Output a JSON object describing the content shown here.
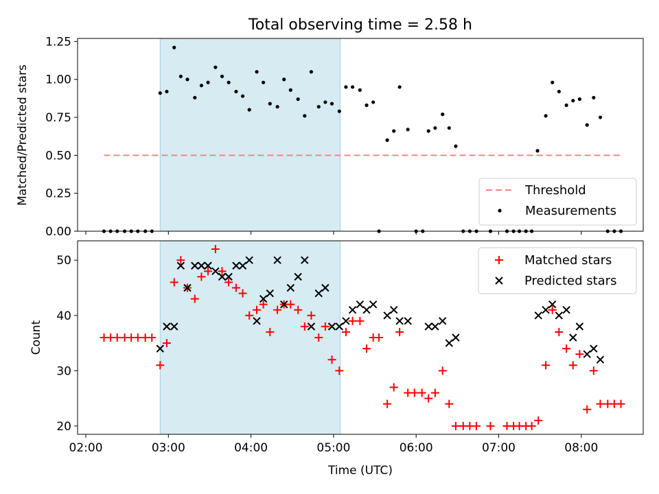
{
  "figure": {
    "title": "Total observing time = 2.58 h",
    "highlight_color": "#add8e6"
  },
  "chart_data": [
    {
      "type": "scatter",
      "title": "Total observing time = 2.58 h",
      "xlabel": "",
      "ylabel": "Matched/Predicted stars",
      "xlim": [
        -0.1,
        6.75
      ],
      "ylim": [
        0,
        1.27
      ],
      "yticks": [
        0,
        0.25,
        0.5,
        0.75,
        1.0,
        1.25
      ],
      "ytick_labels": [
        "0.00",
        "0.25",
        "0.50",
        "0.75",
        "1.00",
        "1.25"
      ],
      "xticks": [
        0,
        1,
        2,
        3,
        4,
        5,
        6
      ],
      "legend": {
        "placement": "lower-right",
        "entries": [
          "Threshold",
          "Measurements"
        ]
      },
      "highlight_span": [
        0.9,
        3.08
      ],
      "threshold": {
        "name": "Threshold",
        "value": 0.5,
        "x": [
          0.22,
          6.48
        ],
        "color": "#ff8080",
        "style": "dashed"
      },
      "series": [
        {
          "name": "Measurements",
          "color": "#000000",
          "marker": "dot",
          "points": [
            [
              0.22,
              0
            ],
            [
              0.3,
              0
            ],
            [
              0.38,
              0
            ],
            [
              0.47,
              0
            ],
            [
              0.55,
              0
            ],
            [
              0.63,
              0
            ],
            [
              0.72,
              0
            ],
            [
              0.8,
              0
            ],
            [
              0.9,
              0.91
            ],
            [
              0.98,
              0.92
            ],
            [
              1.07,
              1.21
            ],
            [
              1.15,
              1.02
            ],
            [
              1.23,
              1.0
            ],
            [
              1.32,
              0.88
            ],
            [
              1.4,
              0.96
            ],
            [
              1.48,
              0.98
            ],
            [
              1.57,
              1.08
            ],
            [
              1.65,
              1.02
            ],
            [
              1.73,
              0.98
            ],
            [
              1.82,
              0.92
            ],
            [
              1.9,
              0.89
            ],
            [
              1.98,
              0.8
            ],
            [
              2.07,
              1.05
            ],
            [
              2.15,
              0.98
            ],
            [
              2.23,
              0.84
            ],
            [
              2.32,
              0.82
            ],
            [
              2.4,
              1.0
            ],
            [
              2.48,
              0.93
            ],
            [
              2.57,
              0.87
            ],
            [
              2.65,
              0.76
            ],
            [
              2.73,
              1.05
            ],
            [
              2.82,
              0.82
            ],
            [
              2.9,
              0.85
            ],
            [
              2.98,
              0.84
            ],
            [
              3.07,
              0.79
            ],
            [
              3.15,
              0.95
            ],
            [
              3.23,
              0.95
            ],
            [
              3.32,
              0.93
            ],
            [
              3.4,
              0.83
            ],
            [
              3.48,
              0.85
            ],
            [
              3.55,
              0
            ],
            [
              3.65,
              0.6
            ],
            [
              3.73,
              0.66
            ],
            [
              3.8,
              0.95
            ],
            [
              3.9,
              0.67
            ],
            [
              4.0,
              0
            ],
            [
              4.08,
              0
            ],
            [
              4.15,
              0.66
            ],
            [
              4.23,
              0.68
            ],
            [
              4.32,
              0.77
            ],
            [
              4.4,
              0.68
            ],
            [
              4.48,
              0.56
            ],
            [
              4.57,
              0
            ],
            [
              4.65,
              0
            ],
            [
              4.73,
              0
            ],
            [
              4.9,
              0
            ],
            [
              5.1,
              0
            ],
            [
              5.18,
              0
            ],
            [
              5.25,
              0
            ],
            [
              5.33,
              0
            ],
            [
              5.4,
              0
            ],
            [
              5.47,
              0.53
            ],
            [
              5.57,
              0.76
            ],
            [
              5.65,
              0.98
            ],
            [
              5.73,
              0.92
            ],
            [
              5.82,
              0.83
            ],
            [
              5.9,
              0.86
            ],
            [
              5.98,
              0.87
            ],
            [
              6.07,
              0.7
            ],
            [
              6.15,
              0.88
            ],
            [
              6.23,
              0.75
            ],
            [
              6.32,
              0
            ],
            [
              6.4,
              0
            ],
            [
              6.48,
              0
            ]
          ]
        }
      ]
    },
    {
      "type": "scatter",
      "title": "",
      "xlabel": "Time (UTC)",
      "ylabel": "Count",
      "xlim": [
        -0.1,
        6.75
      ],
      "ylim": [
        18.5,
        53.5
      ],
      "yticks": [
        20,
        30,
        40,
        50
      ],
      "xticks": [
        0,
        1,
        2,
        3,
        4,
        5,
        6
      ],
      "xtick_labels": [
        "02:00",
        "03:00",
        "04:00",
        "05:00",
        "06:00",
        "07:00",
        "08:00"
      ],
      "legend": {
        "placement": "upper-right",
        "entries": [
          "Matched stars",
          "Predicted stars"
        ]
      },
      "highlight_span": [
        0.9,
        3.08
      ],
      "series": [
        {
          "name": "Matched stars",
          "color": "#ff0000",
          "marker": "plus",
          "points": [
            [
              0.22,
              36
            ],
            [
              0.3,
              36
            ],
            [
              0.38,
              36
            ],
            [
              0.47,
              36
            ],
            [
              0.55,
              36
            ],
            [
              0.63,
              36
            ],
            [
              0.72,
              36
            ],
            [
              0.8,
              36
            ],
            [
              0.9,
              31
            ],
            [
              0.98,
              35
            ],
            [
              1.07,
              46
            ],
            [
              1.15,
              50
            ],
            [
              1.23,
              45
            ],
            [
              1.32,
              43
            ],
            [
              1.4,
              47
            ],
            [
              1.48,
              48
            ],
            [
              1.57,
              52
            ],
            [
              1.65,
              48
            ],
            [
              1.73,
              46
            ],
            [
              1.82,
              45
            ],
            [
              1.9,
              44
            ],
            [
              1.98,
              40
            ],
            [
              2.07,
              41
            ],
            [
              2.15,
              42
            ],
            [
              2.23,
              37
            ],
            [
              2.32,
              41
            ],
            [
              2.4,
              42
            ],
            [
              2.48,
              42
            ],
            [
              2.57,
              41
            ],
            [
              2.65,
              38
            ],
            [
              2.73,
              40
            ],
            [
              2.82,
              36
            ],
            [
              2.9,
              38
            ],
            [
              2.98,
              32
            ],
            [
              3.07,
              30
            ],
            [
              3.15,
              37
            ],
            [
              3.23,
              39
            ],
            [
              3.32,
              39
            ],
            [
              3.4,
              34
            ],
            [
              3.48,
              36
            ],
            [
              3.55,
              36
            ],
            [
              3.65,
              24
            ],
            [
              3.73,
              27
            ],
            [
              3.8,
              37
            ],
            [
              3.9,
              26
            ],
            [
              3.98,
              26
            ],
            [
              4.07,
              26
            ],
            [
              4.15,
              25
            ],
            [
              4.23,
              26
            ],
            [
              4.32,
              30
            ],
            [
              4.4,
              24
            ],
            [
              4.48,
              20
            ],
            [
              4.57,
              20
            ],
            [
              4.65,
              20
            ],
            [
              4.73,
              20
            ],
            [
              4.9,
              20
            ],
            [
              5.1,
              20
            ],
            [
              5.18,
              20
            ],
            [
              5.25,
              20
            ],
            [
              5.33,
              20
            ],
            [
              5.4,
              20
            ],
            [
              5.48,
              21
            ],
            [
              5.57,
              31
            ],
            [
              5.65,
              41
            ],
            [
              5.73,
              37
            ],
            [
              5.82,
              34
            ],
            [
              5.9,
              31
            ],
            [
              5.98,
              33
            ],
            [
              6.07,
              23
            ],
            [
              6.15,
              30
            ],
            [
              6.23,
              24
            ],
            [
              6.32,
              24
            ],
            [
              6.4,
              24
            ],
            [
              6.48,
              24
            ]
          ]
        },
        {
          "name": "Predicted stars",
          "color": "#000000",
          "marker": "x",
          "points": [
            [
              0.9,
              34
            ],
            [
              0.98,
              38
            ],
            [
              1.07,
              38
            ],
            [
              1.15,
              49
            ],
            [
              1.23,
              45
            ],
            [
              1.32,
              49
            ],
            [
              1.4,
              49
            ],
            [
              1.48,
              49
            ],
            [
              1.57,
              48
            ],
            [
              1.65,
              47
            ],
            [
              1.73,
              47
            ],
            [
              1.82,
              49
            ],
            [
              1.9,
              49
            ],
            [
              1.98,
              50
            ],
            [
              2.07,
              39
            ],
            [
              2.15,
              43
            ],
            [
              2.23,
              44
            ],
            [
              2.32,
              50
            ],
            [
              2.4,
              42
            ],
            [
              2.48,
              45
            ],
            [
              2.57,
              47
            ],
            [
              2.65,
              50
            ],
            [
              2.73,
              38
            ],
            [
              2.82,
              44
            ],
            [
              2.9,
              45
            ],
            [
              2.98,
              38
            ],
            [
              3.07,
              38
            ],
            [
              3.15,
              39
            ],
            [
              3.23,
              41
            ],
            [
              3.32,
              42
            ],
            [
              3.4,
              41
            ],
            [
              3.48,
              42
            ],
            [
              3.65,
              40
            ],
            [
              3.73,
              41
            ],
            [
              3.8,
              39
            ],
            [
              3.9,
              39
            ],
            [
              4.15,
              38
            ],
            [
              4.23,
              38
            ],
            [
              4.32,
              39
            ],
            [
              4.4,
              35
            ],
            [
              4.48,
              36
            ],
            [
              5.48,
              40
            ],
            [
              5.57,
              41
            ],
            [
              5.65,
              42
            ],
            [
              5.73,
              40
            ],
            [
              5.82,
              41
            ],
            [
              5.9,
              36
            ],
            [
              5.98,
              38
            ],
            [
              6.07,
              33
            ],
            [
              6.15,
              34
            ],
            [
              6.23,
              32
            ]
          ]
        }
      ]
    }
  ]
}
